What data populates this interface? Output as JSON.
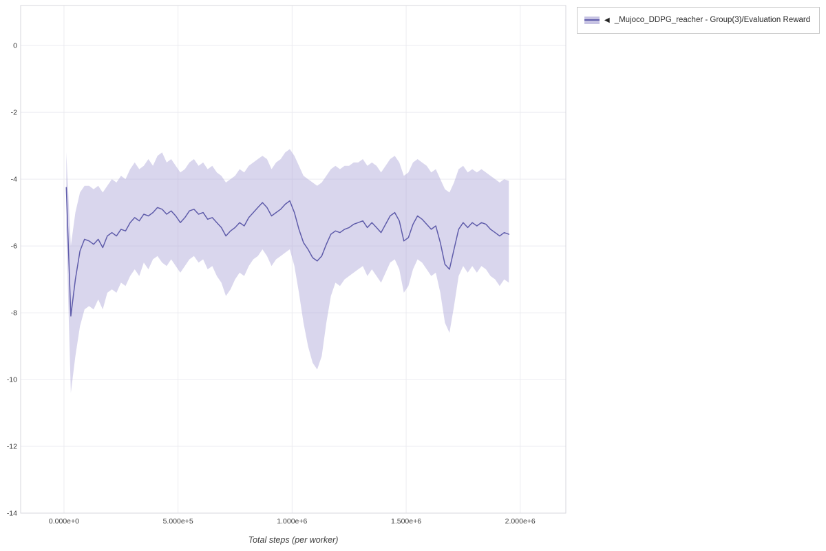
{
  "page": {
    "background": "#ffffff"
  },
  "legend": {
    "collapse_icon": "◀",
    "series_label": "_Mujoco_DDPG_reacher - Group(3)/Evaluation Reward",
    "swatch_band_color": "#c7c3e3",
    "swatch_line_color": "#5f5caa"
  },
  "chart_data": {
    "type": "line",
    "title": "",
    "xlabel": "Total steps (per worker)",
    "ylabel": "",
    "grid": true,
    "legend_position": "top-right",
    "xlim": [
      -190000,
      2200000
    ],
    "ylim": [
      -14,
      1.2
    ],
    "x_ticks": [
      {
        "value": 0,
        "label": "0.000e+0"
      },
      {
        "value": 500000,
        "label": "5.000e+5"
      },
      {
        "value": 1000000,
        "label": "1.000e+6"
      },
      {
        "value": 1500000,
        "label": "1.500e+6"
      },
      {
        "value": 2000000,
        "label": "2.000e+6"
      }
    ],
    "y_ticks": [
      {
        "value": 0,
        "label": "0"
      },
      {
        "value": -2,
        "label": "-2"
      },
      {
        "value": -4,
        "label": "-4"
      },
      {
        "value": -6,
        "label": "-6"
      },
      {
        "value": -8,
        "label": "-8"
      },
      {
        "value": -10,
        "label": "-10"
      },
      {
        "value": -12,
        "label": "-12"
      },
      {
        "value": -14,
        "label": "-14"
      }
    ],
    "series": [
      {
        "name": "_Mujoco_DDPG_reacher - Group(3)/Evaluation Reward",
        "line_color": "#5f5caa",
        "band_color": "#aba5d6",
        "band_opacity": 0.45,
        "steps": [
          10000,
          30000,
          50000,
          70000,
          90000,
          110000,
          130000,
          150000,
          170000,
          190000,
          210000,
          230000,
          250000,
          270000,
          290000,
          310000,
          330000,
          350000,
          370000,
          390000,
          410000,
          430000,
          450000,
          470000,
          490000,
          510000,
          530000,
          550000,
          570000,
          590000,
          610000,
          630000,
          650000,
          670000,
          690000,
          710000,
          730000,
          750000,
          770000,
          790000,
          810000,
          830000,
          850000,
          870000,
          890000,
          910000,
          930000,
          950000,
          970000,
          990000,
          1010000,
          1030000,
          1050000,
          1070000,
          1090000,
          1110000,
          1130000,
          1150000,
          1170000,
          1190000,
          1210000,
          1230000,
          1250000,
          1270000,
          1290000,
          1310000,
          1330000,
          1350000,
          1370000,
          1390000,
          1410000,
          1430000,
          1450000,
          1470000,
          1490000,
          1510000,
          1530000,
          1550000,
          1570000,
          1590000,
          1610000,
          1630000,
          1650000,
          1670000,
          1690000,
          1710000,
          1730000,
          1750000,
          1770000,
          1790000,
          1810000,
          1830000,
          1850000,
          1870000,
          1890000,
          1910000,
          1930000,
          1950000
        ],
        "mean": [
          -4.25,
          -8.1,
          -7.0,
          -6.15,
          -5.8,
          -5.85,
          -5.95,
          -5.8,
          -6.05,
          -5.7,
          -5.6,
          -5.7,
          -5.5,
          -5.55,
          -5.3,
          -5.15,
          -5.25,
          -5.05,
          -5.1,
          -5.0,
          -4.85,
          -4.9,
          -5.05,
          -4.95,
          -5.1,
          -5.3,
          -5.15,
          -4.95,
          -4.9,
          -5.05,
          -5.0,
          -5.2,
          -5.15,
          -5.3,
          -5.45,
          -5.7,
          -5.55,
          -5.45,
          -5.3,
          -5.4,
          -5.15,
          -5.0,
          -4.85,
          -4.7,
          -4.85,
          -5.1,
          -5.0,
          -4.9,
          -4.75,
          -4.65,
          -5.0,
          -5.5,
          -5.9,
          -6.1,
          -6.35,
          -6.45,
          -6.3,
          -5.95,
          -5.65,
          -5.55,
          -5.6,
          -5.5,
          -5.45,
          -5.35,
          -5.3,
          -5.25,
          -5.45,
          -5.3,
          -5.45,
          -5.6,
          -5.35,
          -5.1,
          -5.0,
          -5.25,
          -5.85,
          -5.75,
          -5.35,
          -5.1,
          -5.2,
          -5.35,
          -5.5,
          -5.4,
          -5.9,
          -6.55,
          -6.7,
          -6.1,
          -5.5,
          -5.3,
          -5.45,
          -5.3,
          -5.4,
          -5.3,
          -5.35,
          -5.5,
          -5.6,
          -5.7,
          -5.6,
          -5.65
        ],
        "high": [
          -3.2,
          -6.0,
          -5.0,
          -4.4,
          -4.2,
          -4.2,
          -4.3,
          -4.2,
          -4.4,
          -4.2,
          -4.0,
          -4.1,
          -3.9,
          -4.0,
          -3.7,
          -3.5,
          -3.7,
          -3.6,
          -3.4,
          -3.6,
          -3.3,
          -3.2,
          -3.5,
          -3.4,
          -3.6,
          -3.8,
          -3.7,
          -3.5,
          -3.4,
          -3.6,
          -3.5,
          -3.7,
          -3.6,
          -3.8,
          -3.9,
          -4.1,
          -4.0,
          -3.9,
          -3.7,
          -3.8,
          -3.6,
          -3.5,
          -3.4,
          -3.3,
          -3.4,
          -3.7,
          -3.5,
          -3.4,
          -3.2,
          -3.1,
          -3.3,
          -3.6,
          -3.9,
          -4.0,
          -4.1,
          -4.2,
          -4.1,
          -3.9,
          -3.7,
          -3.6,
          -3.7,
          -3.6,
          -3.6,
          -3.5,
          -3.5,
          -3.4,
          -3.6,
          -3.5,
          -3.6,
          -3.8,
          -3.6,
          -3.4,
          -3.3,
          -3.5,
          -3.9,
          -3.8,
          -3.5,
          -3.4,
          -3.5,
          -3.6,
          -3.8,
          -3.7,
          -4.0,
          -4.3,
          -4.4,
          -4.1,
          -3.7,
          -3.6,
          -3.8,
          -3.7,
          -3.8,
          -3.7,
          -3.8,
          -3.9,
          -4.0,
          -4.1,
          -4.0,
          -4.05
        ],
        "low": [
          -5.5,
          -10.4,
          -9.3,
          -8.4,
          -7.9,
          -7.8,
          -7.9,
          -7.6,
          -7.9,
          -7.4,
          -7.3,
          -7.4,
          -7.1,
          -7.2,
          -6.9,
          -6.7,
          -6.9,
          -6.5,
          -6.7,
          -6.4,
          -6.3,
          -6.5,
          -6.6,
          -6.4,
          -6.6,
          -6.8,
          -6.6,
          -6.4,
          -6.3,
          -6.5,
          -6.4,
          -6.7,
          -6.6,
          -6.9,
          -7.1,
          -7.5,
          -7.3,
          -7.0,
          -6.8,
          -6.9,
          -6.6,
          -6.4,
          -6.3,
          -6.1,
          -6.3,
          -6.6,
          -6.4,
          -6.3,
          -6.2,
          -6.1,
          -6.6,
          -7.4,
          -8.3,
          -9.0,
          -9.5,
          -9.7,
          -9.3,
          -8.3,
          -7.5,
          -7.1,
          -7.2,
          -7.0,
          -6.9,
          -6.8,
          -6.7,
          -6.6,
          -6.9,
          -6.7,
          -6.9,
          -7.1,
          -6.8,
          -6.5,
          -6.4,
          -6.7,
          -7.4,
          -7.2,
          -6.7,
          -6.4,
          -6.5,
          -6.7,
          -6.9,
          -6.8,
          -7.4,
          -8.3,
          -8.6,
          -7.8,
          -6.9,
          -6.6,
          -6.8,
          -6.6,
          -6.8,
          -6.6,
          -6.7,
          -6.9,
          -7.0,
          -7.2,
          -7.0,
          -7.1
        ]
      }
    ]
  }
}
